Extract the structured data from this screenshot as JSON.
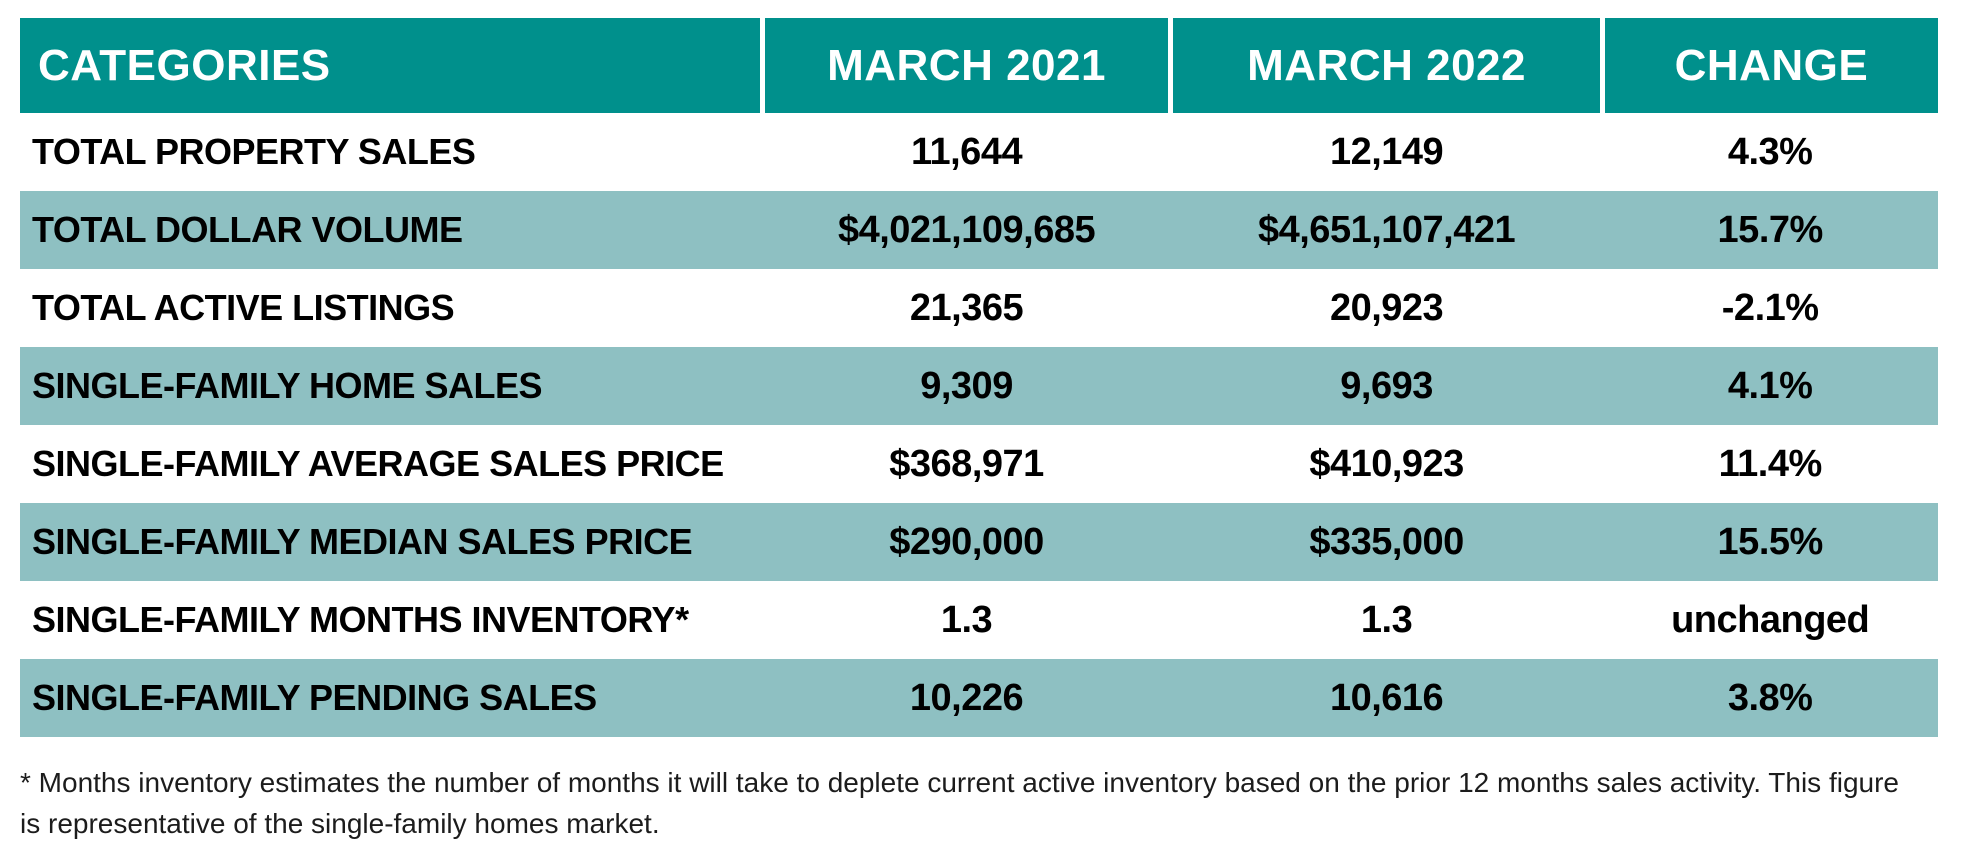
{
  "chart_data": {
    "type": "table",
    "columns": [
      "CATEGORIES",
      "MARCH 2021",
      "MARCH 2022",
      "CHANGE"
    ],
    "rows": [
      {
        "label": "TOTAL PROPERTY SALES",
        "march_2021": "11,644",
        "march_2022": "12,149",
        "change": "4.3%"
      },
      {
        "label": "TOTAL DOLLAR VOLUME",
        "march_2021": "$4,021,109,685",
        "march_2022": "$4,651,107,421",
        "change": "15.7%"
      },
      {
        "label": "TOTAL ACTIVE LISTINGS",
        "march_2021": "21,365",
        "march_2022": "20,923",
        "change": "-2.1%"
      },
      {
        "label": "SINGLE-FAMILY HOME SALES",
        "march_2021": "9,309",
        "march_2022": "9,693",
        "change": "4.1%"
      },
      {
        "label": "SINGLE-FAMILY AVERAGE SALES PRICE",
        "march_2021": "$368,971",
        "march_2022": "$410,923",
        "change": "11.4%"
      },
      {
        "label": "SINGLE-FAMILY MEDIAN SALES PRICE",
        "march_2021": "$290,000",
        "march_2022": "$335,000",
        "change": "15.5%"
      },
      {
        "label": "SINGLE-FAMILY MONTHS INVENTORY*",
        "march_2021": "1.3",
        "march_2022": "1.3",
        "change": "unchanged"
      },
      {
        "label": "SINGLE-FAMILY PENDING SALES",
        "march_2021": "10,226",
        "march_2022": "10,616",
        "change": "3.8%"
      }
    ],
    "footnote": "* Months inventory estimates the number of months it will take to deplete current active inventory based on the prior 12 months sales activity. This figure is representative of the single-family homes market.",
    "layout_hints": {
      "striped_rows": true,
      "header_position": "top"
    }
  },
  "colors": {
    "header_bg": "#00908C",
    "row_stripe_bg": "#8EC0C2",
    "header_text": "#FFFFFF",
    "body_text": "#000000"
  }
}
